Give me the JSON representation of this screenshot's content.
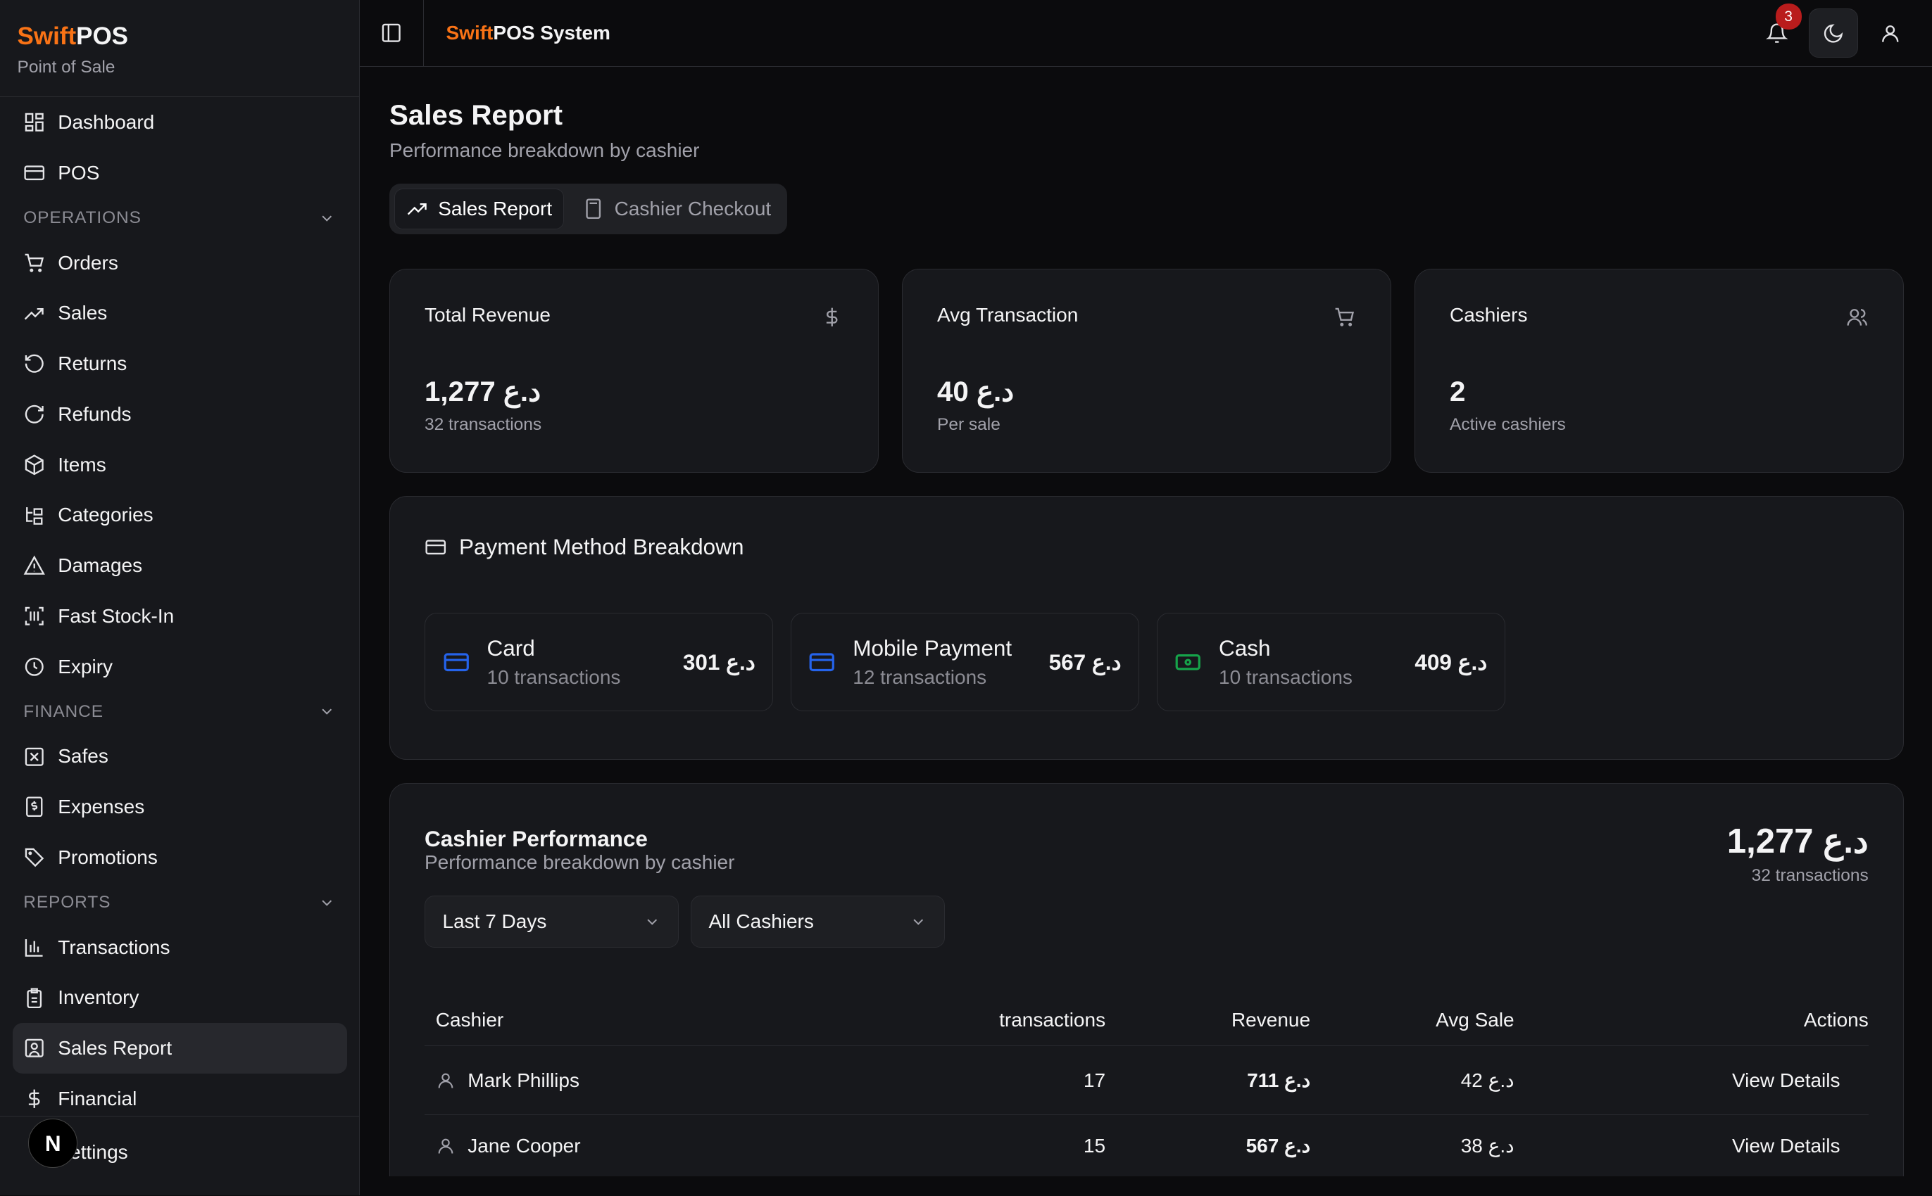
{
  "sidebar": {
    "brand_orange": "Swift",
    "brand_white": "POS",
    "subtitle": "Point of Sale",
    "items_top": [
      {
        "label": "Dashboard",
        "icon": "dashboard-icon"
      },
      {
        "label": "POS",
        "icon": "credit-card-icon"
      }
    ],
    "operations_label": "OPERATIONS",
    "operations": [
      {
        "label": "Orders"
      },
      {
        "label": "Sales"
      },
      {
        "label": "Returns"
      },
      {
        "label": "Refunds"
      },
      {
        "label": "Items"
      },
      {
        "label": "Categories"
      },
      {
        "label": "Damages"
      },
      {
        "label": "Fast Stock-In"
      },
      {
        "label": "Expiry"
      }
    ],
    "finance_label": "FINANCE",
    "finance": [
      {
        "label": "Safes"
      },
      {
        "label": "Expenses"
      },
      {
        "label": "Promotions"
      }
    ],
    "reports_label": "REPORTS",
    "reports": [
      {
        "label": "Transactions"
      },
      {
        "label": "Inventory"
      },
      {
        "label": "Sales Report"
      },
      {
        "label": "Financial"
      }
    ],
    "settings": "Settings",
    "avatar_letter": "N"
  },
  "header": {
    "title_orange": "Swift",
    "title_white": "POS System",
    "notification_count": "3"
  },
  "page": {
    "title": "Sales Report",
    "subtitle": "Performance breakdown by cashier",
    "tabs": [
      {
        "label": "Sales Report"
      },
      {
        "label": "Cashier Checkout"
      }
    ]
  },
  "stats": [
    {
      "label": "Total Revenue",
      "value": "1,277 د.ع",
      "desc": "32 transactions"
    },
    {
      "label": "Avg Transaction",
      "value": "40 د.ع",
      "desc": "Per sale"
    },
    {
      "label": "Cashiers",
      "value": "2",
      "desc": "Active cashiers"
    }
  ],
  "payment": {
    "title": "Payment Method Breakdown",
    "methods": [
      {
        "name": "Card",
        "count": "10 transactions",
        "amount": "301 د.ع"
      },
      {
        "name": "Mobile Payment",
        "count": "12 transactions",
        "amount": "567 د.ع"
      },
      {
        "name": "Cash",
        "count": "10 transactions",
        "amount": "409 د.ع"
      }
    ]
  },
  "colors": {
    "accent": "#f97316",
    "card_icon": "#2563eb",
    "cash_icon": "#16a34a"
  },
  "cashier": {
    "title": "Cashier Performance",
    "subtitle": "Performance breakdown by cashier",
    "total": "1,277 د.ع",
    "total_desc": "32 transactions",
    "period": "Last 7 Days",
    "cashier_filter": "All Cashiers",
    "columns": [
      "Cashier",
      "transactions",
      "Revenue",
      "Avg Sale",
      "Actions"
    ],
    "rows": [
      {
        "name": "Mark Phillips",
        "transactions": "17",
        "revenue": "711 د.ع",
        "avg": "42 د.ع",
        "action": "View Details"
      },
      {
        "name": "Jane Cooper",
        "transactions": "15",
        "revenue": "567 د.ع",
        "avg": "38 د.ع",
        "action": "View Details"
      }
    ]
  }
}
